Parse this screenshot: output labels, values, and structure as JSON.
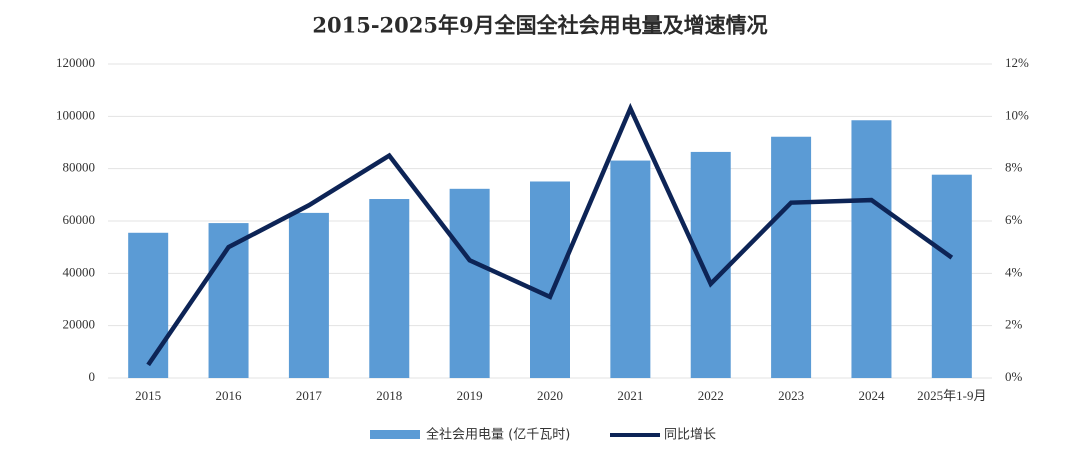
{
  "chart_data": {
    "type": "bar",
    "title": "2015-2025年9月全国全社会用电量及增速情况",
    "categories": [
      "2015",
      "2016",
      "2017",
      "2018",
      "2019",
      "2020",
      "2021",
      "2022",
      "2023",
      "2024",
      "2025年1-9月"
    ],
    "series": [
      {
        "name": "全社会用电量 (亿千瓦时)",
        "type": "bar",
        "axis": "left",
        "color": "#5b9bd5",
        "values": [
          55500,
          59200,
          63100,
          68400,
          72300,
          75100,
          83100,
          86400,
          92200,
          98500,
          77700
        ]
      },
      {
        "name": "同比增长",
        "type": "line",
        "axis": "right",
        "color": "#0d2456",
        "values": [
          0.5,
          5.0,
          6.6,
          8.5,
          4.5,
          3.1,
          10.3,
          3.6,
          6.7,
          6.8,
          4.6
        ]
      }
    ],
    "y_left": {
      "min": 0,
      "max": 120000,
      "ticks": [
        "0",
        "20000",
        "40000",
        "60000",
        "80000",
        "100000",
        "120000"
      ]
    },
    "y_right": {
      "min": 0,
      "max": 12,
      "ticks": [
        "0%",
        "2%",
        "4%",
        "6%",
        "8%",
        "10%",
        "12%"
      ]
    },
    "grid": true,
    "legend": "bottom"
  }
}
